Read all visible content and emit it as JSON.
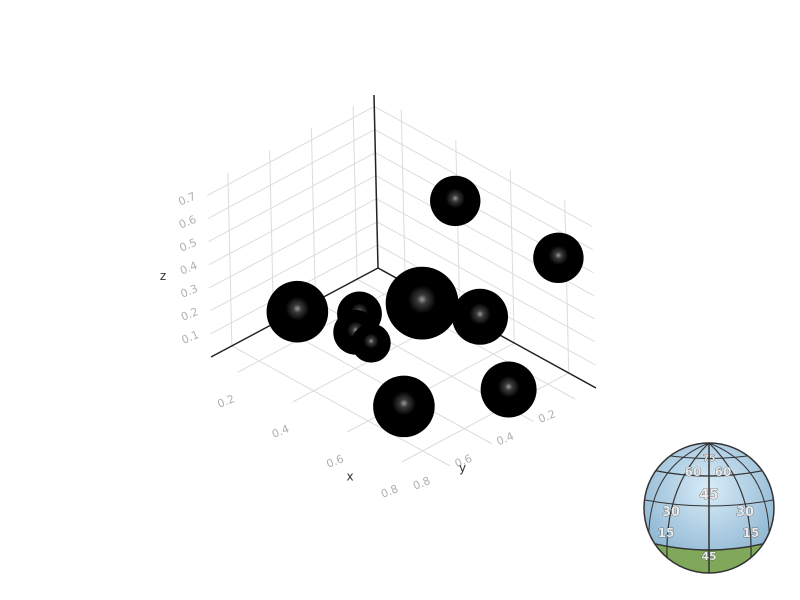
{
  "chart_data": {
    "type": "scatter",
    "subtype": "3d-bubble",
    "title": "",
    "xlabel": "x",
    "ylabel": "y",
    "zlabel": "z",
    "xlim": [
      0.1,
      0.9
    ],
    "ylim": [
      0.1,
      0.9
    ],
    "zlim": [
      0.0,
      0.75
    ],
    "x_ticks": [
      "0.2",
      "0.4",
      "0.6",
      "0.8"
    ],
    "y_ticks": [
      "0.2",
      "0.4",
      "0.6",
      "0.8"
    ],
    "z_ticks": [
      "0.1",
      "0.2",
      "0.3",
      "0.4",
      "0.5",
      "0.6",
      "0.7"
    ],
    "grid": true,
    "marker_color": "#000000",
    "points": [
      {
        "x": 0.55,
        "y": 0.3,
        "z": 0.68,
        "size": 0.09
      },
      {
        "x": 0.85,
        "y": 0.2,
        "z": 0.58,
        "size": 0.09
      },
      {
        "x": 0.75,
        "y": 0.45,
        "z": 0.38,
        "size": 0.1
      },
      {
        "x": 0.52,
        "y": 0.43,
        "z": 0.28,
        "size": 0.13
      },
      {
        "x": 0.42,
        "y": 0.6,
        "z": 0.25,
        "size": 0.08
      },
      {
        "x": 0.42,
        "y": 0.62,
        "z": 0.18,
        "size": 0.08
      },
      {
        "x": 0.5,
        "y": 0.65,
        "z": 0.2,
        "size": 0.07
      },
      {
        "x": 0.85,
        "y": 0.45,
        "z": 0.13,
        "size": 0.1
      },
      {
        "x": 0.75,
        "y": 0.82,
        "z": 0.17,
        "size": 0.11
      },
      {
        "x": 0.15,
        "y": 0.55,
        "z": 0.06,
        "size": 0.11
      }
    ]
  },
  "orientation_gizmo": {
    "labels": [
      "75",
      "60",
      "60",
      "45",
      "30",
      "30",
      "15",
      "15",
      "45"
    ],
    "sky_color": "#a6cbe3",
    "ground_color": "#7fa85a"
  }
}
